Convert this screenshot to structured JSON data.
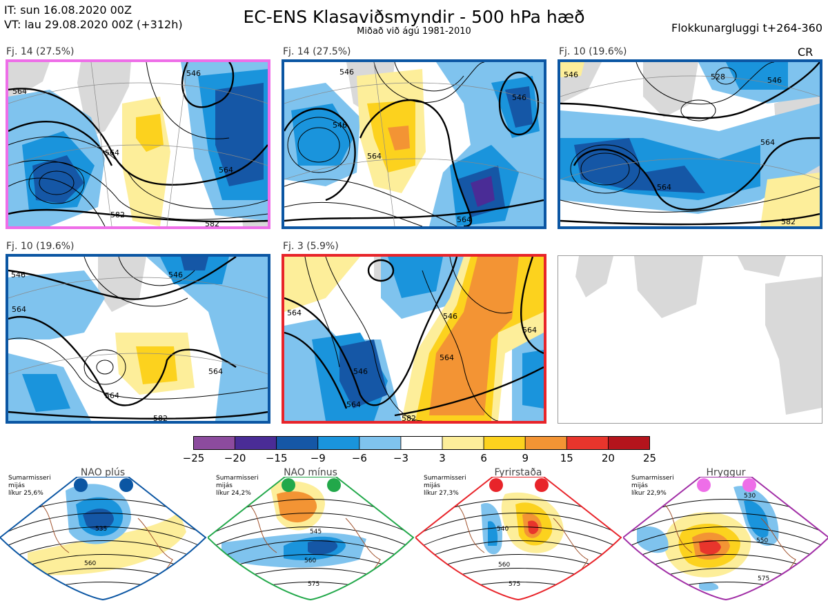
{
  "header": {
    "issue_time": "IT: sun 16.08.2020 00Z",
    "valid_time": "VT: lau 29.08.2020 00Z  (+312h)",
    "title": "EC-ENS Klasaviðsmyndir - 500 hPa hæð",
    "subtitle": "Miðað við ágú 1981-2010",
    "window": "Flokkunargluggi t+264-360"
  },
  "panels": [
    {
      "label": "Fj. 14 (27.5%)",
      "frame_color": "#ee6ee8",
      "contours": [
        "564",
        "564",
        "564",
        "546",
        "582",
        "582"
      ]
    },
    {
      "label": "Fj. 14 (27.5%)",
      "frame_color": "#0b56a3",
      "contours": [
        "546",
        "546",
        "564",
        "564",
        "546"
      ]
    },
    {
      "label": "Fj. 10 (19.6%)",
      "frame_color": "#0b56a3",
      "contours": [
        "546",
        "528",
        "546",
        "564",
        "564",
        "582"
      ],
      "tag": "CR"
    },
    {
      "label": "Fj. 10 (19.6%)",
      "frame_color": "#0b56a3",
      "contours": [
        "546",
        "564",
        "546",
        "564",
        "564",
        "582"
      ]
    },
    {
      "label": "Fj. 3 (5.9%)",
      "frame_color": "#e8242a",
      "contours": [
        "564",
        "546",
        "564",
        "546",
        "564",
        "564",
        "582"
      ]
    },
    {
      "label": "",
      "frame_color": "#9a9a9a",
      "contours": []
    }
  ],
  "colorbar": {
    "ticks": [
      "−25",
      "−20",
      "−15",
      "−9",
      "−6",
      "−3",
      "3",
      "6",
      "9",
      "15",
      "20",
      "25"
    ],
    "colors": [
      "#8c4b9e",
      "#4a2c96",
      "#1557a6",
      "#1a94dc",
      "#7fc3ee",
      "#ffffff",
      "#fdee9a",
      "#fcd21e",
      "#f39434",
      "#e8352c",
      "#b4141c"
    ]
  },
  "regimes": [
    {
      "title": "NAO plús",
      "meta": [
        "Sumarmisseri",
        "mijás",
        "líkur 25,6%"
      ],
      "color": "#0b56a3",
      "contours": [
        "535",
        "560"
      ]
    },
    {
      "title": "NAO mínus",
      "meta": [
        "Sumarmisseri",
        "mijás",
        "líkur 24,2%"
      ],
      "color": "#22a84a",
      "contours": [
        "545",
        "560",
        "575"
      ]
    },
    {
      "title": "Fyrirstaða",
      "meta": [
        "Sumarmisseri",
        "mijás",
        "líkur 27,3%"
      ],
      "color": "#e8242a",
      "contours": [
        "540",
        "560",
        "575"
      ]
    },
    {
      "title": "Hryggur",
      "meta": [
        "Sumarmisseri",
        "mijás",
        "líkur 22,9%"
      ],
      "color": "#a12ea6",
      "dot_color": "#ee6ee8",
      "contours": [
        "530",
        "550",
        "575"
      ]
    }
  ]
}
